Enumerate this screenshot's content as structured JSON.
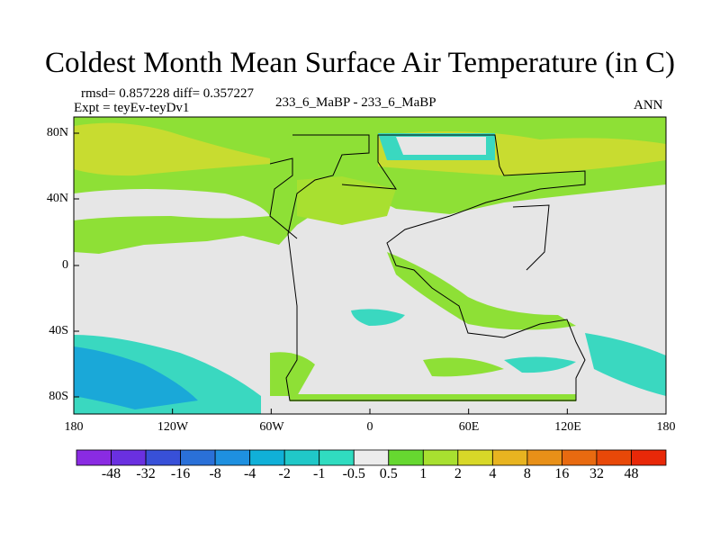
{
  "title": "Coldest Month Mean Surface Air Temperature (in C)",
  "stats": "rmsd= 0.857228 diff= 0.357227",
  "expt": "Expt = teyEv-teyDv1",
  "experiments": "233_6_MaBP - 233_6_MaBP",
  "season": "ANN",
  "x_ticks": [
    "180",
    "120W",
    "60W",
    "0",
    "60E",
    "120E",
    "180"
  ],
  "y_ticks": [
    "80N",
    "40N",
    "0",
    "40S",
    "80S"
  ],
  "colorbar": {
    "labels": [
      "-48",
      "-32",
      "-16",
      "-8",
      "-4",
      "-2",
      "-1",
      "-0.5",
      "0.5",
      "1",
      "2",
      "4",
      "8",
      "16",
      "32",
      "48"
    ],
    "colors": [
      "#8a2be2",
      "#6a30e0",
      "#3850d8",
      "#2a70d8",
      "#1e90e0",
      "#10b0d8",
      "#20c8c8",
      "#30dcc0",
      "#ececec",
      "#66d830",
      "#a8e030",
      "#d8d828",
      "#e8b420",
      "#e89018",
      "#e86a10",
      "#e84808",
      "#e82808"
    ]
  },
  "map_colors": {
    "land_outline": "#000000",
    "near_zero": "#e6e6e6",
    "warm_small": "#8ee036",
    "warm_mid": "#c8dc30",
    "cool_small": "#3ad8c0",
    "cool_mid": "#1aa8d8"
  }
}
